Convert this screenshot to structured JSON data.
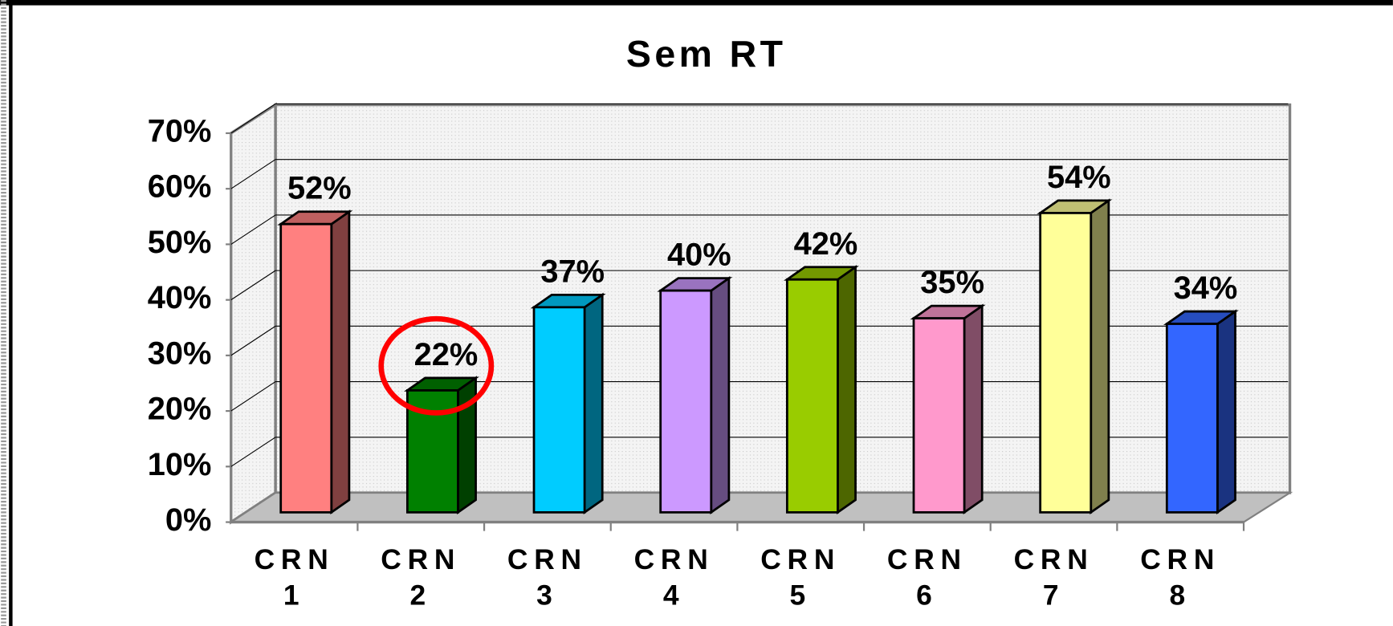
{
  "chart_data": {
    "type": "bar3d",
    "title": "Sem RT",
    "categories": [
      "CRN 1",
      "CRN 2",
      "CRN 3",
      "CRN 4",
      "CRN 5",
      "CRN 6",
      "CRN 7",
      "CRN 8"
    ],
    "values": [
      52,
      22,
      37,
      40,
      42,
      35,
      54,
      34
    ],
    "value_labels": [
      "52%",
      "22%",
      "37%",
      "40%",
      "42%",
      "35%",
      "54%",
      "34%"
    ],
    "colors": [
      "#ff8080",
      "#008000",
      "#00ccff",
      "#cc99ff",
      "#99cc00",
      "#ff99cc",
      "#ffff99",
      "#3366ff"
    ],
    "ylim": [
      0,
      70
    ],
    "yticks": [
      {
        "value": 0,
        "label": "0%"
      },
      {
        "value": 10,
        "label": "10%"
      },
      {
        "value": 20,
        "label": "20%"
      },
      {
        "value": 30,
        "label": "30%"
      },
      {
        "value": 40,
        "label": "40%"
      },
      {
        "value": 50,
        "label": "50%"
      },
      {
        "value": 60,
        "label": "60%"
      },
      {
        "value": 70,
        "label": "70%"
      }
    ],
    "grid": true
  }
}
